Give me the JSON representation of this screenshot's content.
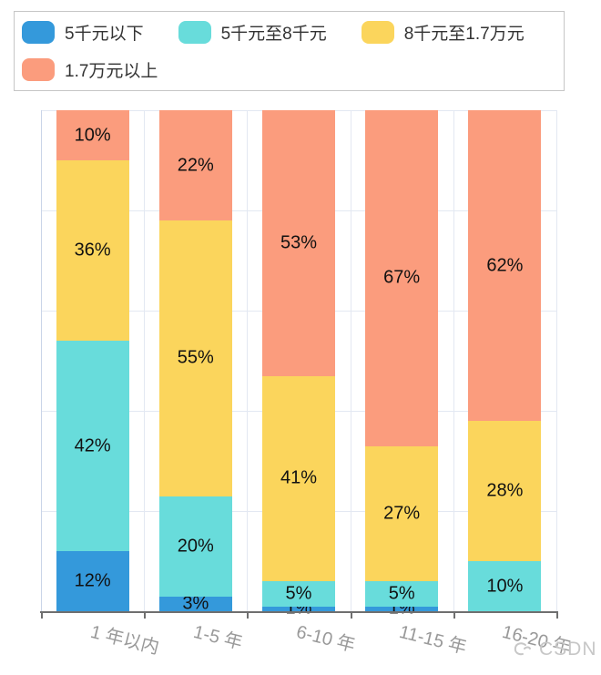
{
  "legend": {
    "items": [
      {
        "label": "5千元以下",
        "color": "#3499DB"
      },
      {
        "label": "5千元至8千元",
        "color": "#68DCDB"
      },
      {
        "label": "8千元至1.7万元",
        "color": "#FBD55C"
      },
      {
        "label": "1.7万元以上",
        "color": "#FB9C7D"
      }
    ]
  },
  "chart_data": {
    "type": "bar",
    "stacked": true,
    "percent": true,
    "title": "",
    "xlabel": "",
    "ylabel": "",
    "ylim": [
      0,
      100
    ],
    "grid": true,
    "grid_step_pct": 20,
    "legend_position": "top",
    "value_suffix": "%",
    "categories": [
      "1 年以内",
      "1-5 年",
      "6-10 年",
      "11-15 年",
      "16-20 年"
    ],
    "series": [
      {
        "name": "5千元以下",
        "color": "#3499DB",
        "values": [
          12,
          3,
          1,
          1,
          0
        ]
      },
      {
        "name": "5千元至8千元",
        "color": "#68DCDB",
        "values": [
          42,
          20,
          5,
          5,
          10
        ]
      },
      {
        "name": "8千元至1.7万元",
        "color": "#FBD55C",
        "values": [
          36,
          55,
          41,
          27,
          28
        ]
      },
      {
        "name": "1.7万元以上",
        "color": "#FB9C7D",
        "values": [
          10,
          22,
          53,
          67,
          62
        ]
      }
    ]
  },
  "watermark": {
    "text": "CSDN"
  }
}
